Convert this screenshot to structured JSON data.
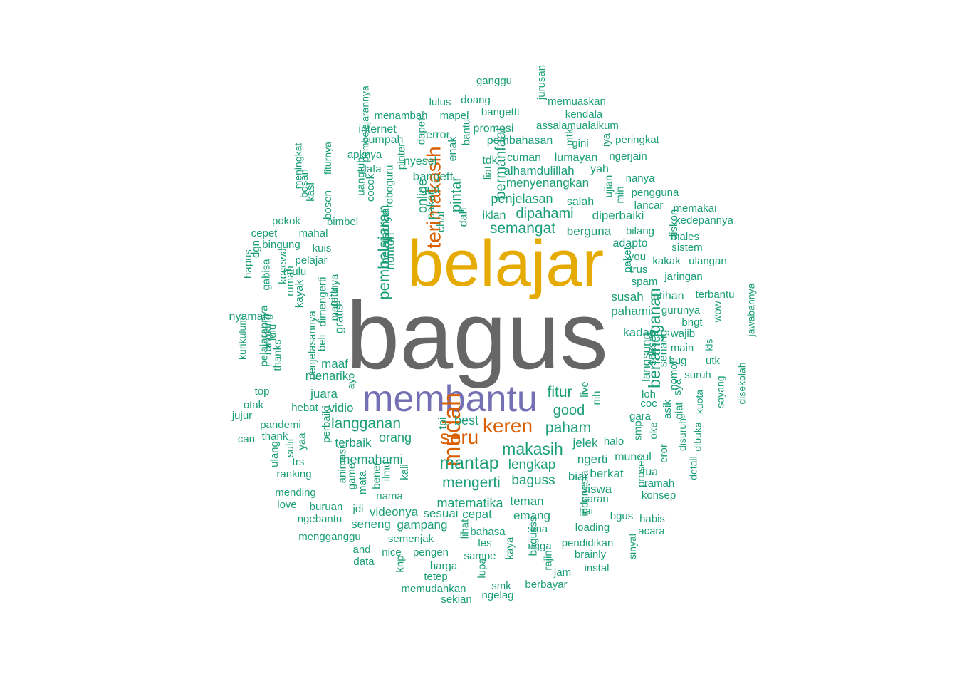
{
  "colors": {
    "gray": "#666666",
    "gold": "#E6AB02",
    "purple": "#7570B3",
    "orange": "#D95F02",
    "green": "#1B9E77"
  },
  "words": [
    {
      "text": "bagus",
      "color": "gray"
    },
    {
      "text": "belajar",
      "color": "gold"
    },
    {
      "text": "membantu",
      "color": "purple"
    },
    {
      "text": "mudah",
      "color": "orange"
    },
    {
      "text": "terimakasih",
      "color": "orange"
    },
    {
      "text": "seru",
      "color": "orange"
    },
    {
      "text": "keren",
      "color": "orange"
    },
    {
      "text": "berlangganan",
      "color": "green"
    },
    {
      "text": "pembelajaran",
      "color": "green"
    },
    {
      "text": "mantap",
      "color": "green"
    },
    {
      "text": "makasih",
      "color": "green"
    },
    {
      "text": "langganan",
      "color": "green"
    },
    {
      "text": "semangat",
      "color": "green"
    },
    {
      "text": "fitur",
      "color": "green"
    },
    {
      "text": "paham",
      "color": "green"
    },
    {
      "text": "mengerti",
      "color": "green"
    },
    {
      "text": "dipahami",
      "color": "green"
    },
    {
      "text": "bermanfaat",
      "color": "green"
    },
    {
      "text": "pintar",
      "color": "green"
    },
    {
      "text": "good",
      "color": "green"
    },
    {
      "text": "lengkap",
      "color": "green"
    },
    {
      "text": "baguss",
      "color": "green"
    },
    {
      "text": "penjelasan",
      "color": "green"
    },
    {
      "text": "memahami",
      "color": "green"
    },
    {
      "text": "orang",
      "color": "green"
    },
    {
      "text": "best",
      "color": "green"
    },
    {
      "text": "online",
      "color": "green"
    },
    {
      "text": "langsung",
      "color": "green"
    },
    {
      "text": "matematika",
      "color": "green"
    },
    {
      "text": "menyenangkan",
      "color": "green"
    },
    {
      "text": "belajarnya",
      "color": "green"
    },
    {
      "text": "nonton",
      "color": "green"
    },
    {
      "text": "gratis",
      "color": "green"
    },
    {
      "text": "gitu",
      "color": "green"
    },
    {
      "text": "maaf",
      "color": "green"
    },
    {
      "text": "menarik",
      "color": "green"
    },
    {
      "text": "juara",
      "color": "green"
    },
    {
      "text": "vidio",
      "color": "green"
    },
    {
      "text": "terbaik",
      "color": "green"
    },
    {
      "text": "teman",
      "color": "green"
    },
    {
      "text": "cepat",
      "color": "green"
    },
    {
      "text": "emang",
      "color": "green"
    },
    {
      "text": "sesuai",
      "color": "green"
    },
    {
      "text": "videonya",
      "color": "green"
    },
    {
      "text": "gampang",
      "color": "green"
    },
    {
      "text": "seneng",
      "color": "green"
    },
    {
      "text": "ngerti",
      "color": "green"
    },
    {
      "text": "jelek",
      "color": "green"
    },
    {
      "text": "berkat",
      "color": "green"
    },
    {
      "text": "biar",
      "color": "green"
    },
    {
      "text": "siswa",
      "color": "green"
    },
    {
      "text": "kadang",
      "color": "green"
    },
    {
      "text": "pahami",
      "color": "green"
    },
    {
      "text": "susah",
      "color": "green"
    },
    {
      "text": "latihan",
      "color": "green"
    },
    {
      "text": "sukses",
      "color": "green"
    },
    {
      "text": "senang",
      "color": "green"
    },
    {
      "text": "berguna",
      "color": "green"
    },
    {
      "text": "diperbaiki",
      "color": "green"
    },
    {
      "text": "salah",
      "color": "green"
    },
    {
      "text": "alhamdulillah",
      "color": "green"
    },
    {
      "text": "cuman",
      "color": "green"
    },
    {
      "text": "lumayan",
      "color": "green"
    },
    {
      "text": "yah",
      "color": "green"
    },
    {
      "text": "bangett",
      "color": "green"
    },
    {
      "text": "gua",
      "color": "green"
    },
    {
      "text": "pakai",
      "color": "green"
    },
    {
      "text": "chat",
      "color": "green"
    },
    {
      "text": "dah",
      "color": "green"
    },
    {
      "text": "tpi",
      "color": "green"
    },
    {
      "text": "iklan",
      "color": "green"
    },
    {
      "text": "liat",
      "color": "green"
    },
    {
      "text": "tdk",
      "color": "green"
    },
    {
      "text": "nyesel",
      "color": "green"
    },
    {
      "text": "enak",
      "color": "green"
    },
    {
      "text": "bantu",
      "color": "green"
    },
    {
      "text": "pembahasan",
      "color": "green"
    },
    {
      "text": "promosi",
      "color": "green"
    },
    {
      "text": "error",
      "color": "green"
    },
    {
      "text": "sumpah",
      "color": "green"
    },
    {
      "text": "internet",
      "color": "green"
    },
    {
      "text": "dapet",
      "color": "green"
    },
    {
      "text": "menambah",
      "color": "green"
    },
    {
      "text": "mapel",
      "color": "green"
    },
    {
      "text": "bangettt",
      "color": "green"
    },
    {
      "text": "lulus",
      "color": "green"
    },
    {
      "text": "doang",
      "color": "green"
    },
    {
      "text": "ganggu",
      "color": "green"
    },
    {
      "text": "jurusan",
      "color": "green"
    },
    {
      "text": "memuaskan",
      "color": "green"
    },
    {
      "text": "kendala",
      "color": "green"
    },
    {
      "text": "assalamualaikum",
      "color": "green"
    },
    {
      "text": "mtk",
      "color": "green"
    },
    {
      "text": "gini",
      "color": "green"
    },
    {
      "text": "iya",
      "color": "green"
    },
    {
      "text": "peringkat",
      "color": "green"
    },
    {
      "text": "ngerjain",
      "color": "green"
    },
    {
      "text": "nanya",
      "color": "green"
    },
    {
      "text": "pengguna",
      "color": "green"
    },
    {
      "text": "ujian",
      "color": "green"
    },
    {
      "text": "min",
      "color": "green"
    },
    {
      "text": "lancar",
      "color": "green"
    },
    {
      "text": "memakai",
      "color": "green"
    },
    {
      "text": "kedepannya",
      "color": "green"
    },
    {
      "text": "bilang",
      "color": "green"
    },
    {
      "text": "diskon",
      "color": "green"
    },
    {
      "text": "males",
      "color": "green"
    },
    {
      "text": "sistem",
      "color": "green"
    },
    {
      "text": "adapto",
      "color": "green"
    },
    {
      "text": "you",
      "color": "green"
    },
    {
      "text": "paket",
      "color": "green"
    },
    {
      "text": "kakak",
      "color": "green"
    },
    {
      "text": "ulangan",
      "color": "green"
    },
    {
      "text": "trus",
      "color": "green"
    },
    {
      "text": "spam",
      "color": "green"
    },
    {
      "text": "jaringan",
      "color": "green"
    },
    {
      "text": "terbantu",
      "color": "green"
    },
    {
      "text": "gurunya",
      "color": "green"
    },
    {
      "text": "bngt",
      "color": "green"
    },
    {
      "text": "wow",
      "color": "green"
    },
    {
      "text": "jawabannya",
      "color": "green"
    },
    {
      "text": "wajib",
      "color": "green"
    },
    {
      "text": "main",
      "color": "green"
    },
    {
      "text": "kls",
      "color": "green"
    },
    {
      "text": "bug",
      "color": "green"
    },
    {
      "text": "utk",
      "color": "green"
    },
    {
      "text": "suruh",
      "color": "green"
    },
    {
      "text": "nomor",
      "color": "green"
    },
    {
      "text": "sya",
      "color": "green"
    },
    {
      "text": "loh",
      "color": "green"
    },
    {
      "text": "coc",
      "color": "green"
    },
    {
      "text": "asik",
      "color": "green"
    },
    {
      "text": "giat",
      "color": "green"
    },
    {
      "text": "gara",
      "color": "green"
    },
    {
      "text": "kuota",
      "color": "green"
    },
    {
      "text": "sayang",
      "color": "green"
    },
    {
      "text": "disekolah",
      "color": "green"
    },
    {
      "text": "smp",
      "color": "green"
    },
    {
      "text": "oke",
      "color": "green"
    },
    {
      "text": "halo",
      "color": "green"
    },
    {
      "text": "disuruh",
      "color": "green"
    },
    {
      "text": "dibuka",
      "color": "green"
    },
    {
      "text": "muncul",
      "color": "green"
    },
    {
      "text": "eror",
      "color": "green"
    },
    {
      "text": "tua",
      "color": "green"
    },
    {
      "text": "detail",
      "color": "green"
    },
    {
      "text": "ramah",
      "color": "green"
    },
    {
      "text": "konsep",
      "color": "green"
    },
    {
      "text": "proses",
      "color": "green"
    },
    {
      "text": "live",
      "color": "green"
    },
    {
      "text": "nih",
      "color": "green"
    },
    {
      "text": "saran",
      "color": "green"
    },
    {
      "text": "hai",
      "color": "green"
    },
    {
      "text": "bgus",
      "color": "green"
    },
    {
      "text": "habis",
      "color": "green"
    },
    {
      "text": "acara",
      "color": "green"
    },
    {
      "text": "indonesia",
      "color": "green"
    },
    {
      "text": "loading",
      "color": "green"
    },
    {
      "text": "pendidikan",
      "color": "green"
    },
    {
      "text": "sinyal",
      "color": "green"
    },
    {
      "text": "brainly",
      "color": "green"
    },
    {
      "text": "instal",
      "color": "green"
    },
    {
      "text": "sma",
      "color": "green"
    },
    {
      "text": "ngga",
      "color": "green"
    },
    {
      "text": "bagusss",
      "color": "green"
    },
    {
      "text": "rajin",
      "color": "green"
    },
    {
      "text": "jam",
      "color": "green"
    },
    {
      "text": "berbayar",
      "color": "green"
    },
    {
      "text": "bahasa",
      "color": "green"
    },
    {
      "text": "lihat",
      "color": "green"
    },
    {
      "text": "les",
      "color": "green"
    },
    {
      "text": "kaya",
      "color": "green"
    },
    {
      "text": "sampe",
      "color": "green"
    },
    {
      "text": "lupa",
      "color": "green"
    },
    {
      "text": "smk",
      "color": "green"
    },
    {
      "text": "ngelag",
      "color": "green"
    },
    {
      "text": "semenjak",
      "color": "green"
    },
    {
      "text": "pengen",
      "color": "green"
    },
    {
      "text": "harga",
      "color": "green"
    },
    {
      "text": "tetep",
      "color": "green"
    },
    {
      "text": "memudahkan",
      "color": "green"
    },
    {
      "text": "sekian",
      "color": "green"
    },
    {
      "text": "nice",
      "color": "green"
    },
    {
      "text": "knp",
      "color": "green"
    },
    {
      "text": "and",
      "color": "green"
    },
    {
      "text": "data",
      "color": "green"
    },
    {
      "text": "mengganggu",
      "color": "green"
    },
    {
      "text": "ngebantu",
      "color": "green"
    },
    {
      "text": "jdi",
      "color": "green"
    },
    {
      "text": "buruan",
      "color": "green"
    },
    {
      "text": "nama",
      "color": "green"
    },
    {
      "text": "game",
      "color": "green"
    },
    {
      "text": "mata",
      "color": "green"
    },
    {
      "text": "bener",
      "color": "green"
    },
    {
      "text": "ilmu",
      "color": "green"
    },
    {
      "text": "kali",
      "color": "green"
    },
    {
      "text": "animasi",
      "color": "green"
    },
    {
      "text": "mending",
      "color": "green"
    },
    {
      "text": "love",
      "color": "green"
    },
    {
      "text": "trs",
      "color": "green"
    },
    {
      "text": "ranking",
      "color": "green"
    },
    {
      "text": "ulang",
      "color": "green"
    },
    {
      "text": "sulit",
      "color": "green"
    },
    {
      "text": "yaa",
      "color": "green"
    },
    {
      "text": "perbaiki",
      "color": "green"
    },
    {
      "text": "thank",
      "color": "green"
    },
    {
      "text": "pandemi",
      "color": "green"
    },
    {
      "text": "cari",
      "color": "green"
    },
    {
      "text": "hebat",
      "color": "green"
    },
    {
      "text": "ayo",
      "color": "green"
    },
    {
      "text": "otak",
      "color": "green"
    },
    {
      "text": "jujur",
      "color": "green"
    },
    {
      "text": "top",
      "color": "green"
    },
    {
      "text": "penjelasannya",
      "color": "green"
    },
    {
      "text": "thanks",
      "color": "green"
    },
    {
      "text": "lulu",
      "color": "green"
    },
    {
      "text": "rangking",
      "color": "green"
    },
    {
      "text": "pelajarannya",
      "color": "green"
    },
    {
      "text": "kurikulum",
      "color": "green"
    },
    {
      "text": "nyaman",
      "color": "green"
    },
    {
      "text": "beli",
      "color": "green"
    },
    {
      "text": "dimengerti",
      "color": "green"
    },
    {
      "text": "materinya",
      "color": "green"
    },
    {
      "text": "kayak",
      "color": "green"
    },
    {
      "text": "rumah",
      "color": "green"
    },
    {
      "text": "kecewa",
      "color": "green"
    },
    {
      "text": "gabisa",
      "color": "green"
    },
    {
      "text": "dgn",
      "color": "green"
    },
    {
      "text": "hapus",
      "color": "green"
    },
    {
      "text": "mulu",
      "color": "green"
    },
    {
      "text": "pelajar",
      "color": "green"
    },
    {
      "text": "kuis",
      "color": "green"
    },
    {
      "text": "bingung",
      "color": "green"
    },
    {
      "text": "cepet",
      "color": "green"
    },
    {
      "text": "mahal",
      "color": "green"
    },
    {
      "text": "pokok",
      "color": "green"
    },
    {
      "text": "bimbel",
      "color": "green"
    },
    {
      "text": "bosen",
      "color": "green"
    },
    {
      "text": "kasi",
      "color": "green"
    },
    {
      "text": "bosan",
      "color": "green"
    },
    {
      "text": "meningkat",
      "color": "green"
    },
    {
      "text": "fiturnya",
      "color": "green"
    },
    {
      "text": "pembelajarannya",
      "color": "green"
    },
    {
      "text": "uangtuh",
      "color": "green"
    },
    {
      "text": "cocok",
      "color": "green"
    },
    {
      "text": "roboguru",
      "color": "green"
    },
    {
      "text": "dafa",
      "color": "green"
    },
    {
      "text": "pinter",
      "color": "green"
    },
    {
      "text": "apknya",
      "color": "green"
    }
  ]
}
